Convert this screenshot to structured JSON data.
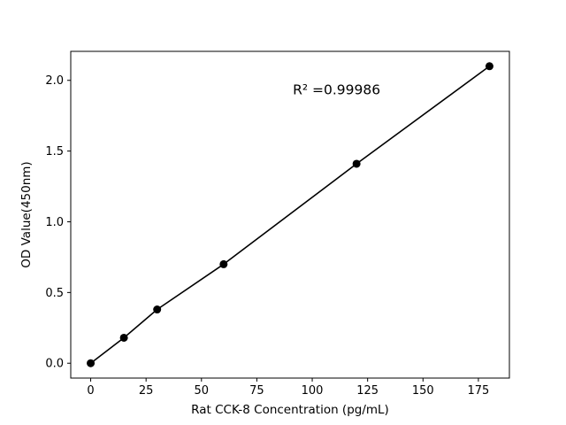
{
  "chart_data": {
    "type": "scatter",
    "style": "line-with-markers",
    "x": [
      0,
      15,
      30,
      60,
      120,
      180
    ],
    "y": [
      0.0,
      0.18,
      0.38,
      0.7,
      1.41,
      2.1
    ],
    "title": "",
    "xlabel": "Rat CCK-8 Concentration (pg/mL)",
    "ylabel": "OD Value(450nm)",
    "xticks": [
      0,
      25,
      50,
      75,
      100,
      125,
      150,
      175
    ],
    "yticks": [
      0.0,
      0.5,
      1.0,
      1.5,
      2.0
    ],
    "xlim": [
      -9,
      189
    ],
    "ylim": [
      -0.105,
      2.205
    ],
    "annotation": {
      "text": "R² =0.99986",
      "x": 111,
      "y": 1.9
    },
    "legend": "none",
    "grid": false,
    "line_color": "#000000",
    "marker_color": "#000000",
    "spine_color": "#000000",
    "background_color": "#ffffff"
  }
}
